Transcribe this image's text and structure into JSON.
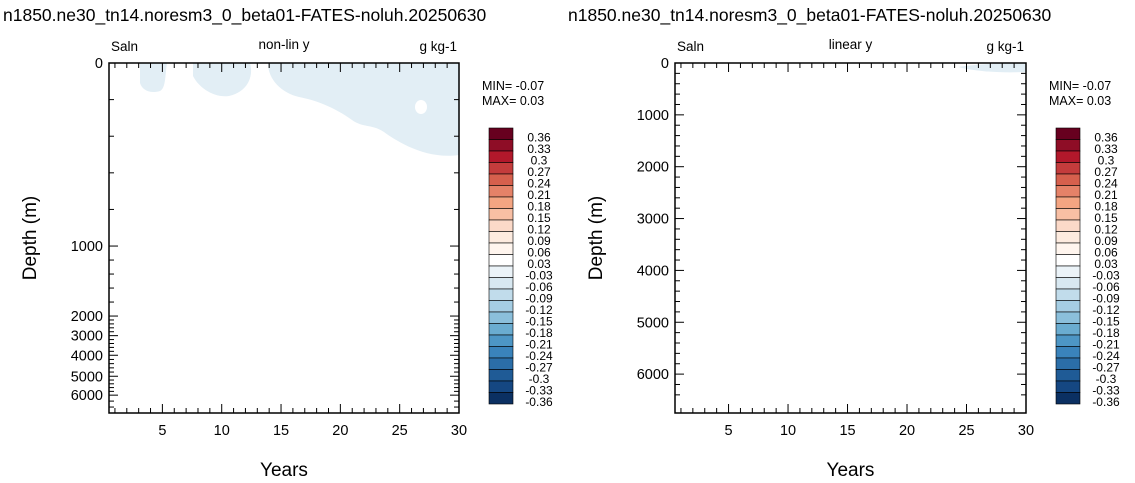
{
  "chart_data": [
    {
      "type": "heatmap",
      "title": "n1850.ne30_tn14.noresm3_0_beta01-FATES-noluh.20250630",
      "left_label": "Saln",
      "center_label": "non-lin y",
      "right_label": "g kg-1",
      "xlabel": "Years",
      "ylabel": "Depth (m)",
      "xlim": [
        0.5,
        30
      ],
      "ylim": [
        6600,
        0
      ],
      "y_scale": "non-linear (compressed below 1000 m)",
      "xticks": [
        5,
        10,
        15,
        20,
        25,
        30
      ],
      "yticks": [
        0,
        1000,
        2000,
        3000,
        4000,
        5000,
        6000
      ],
      "ytick_labels": [
        "0",
        "1000",
        "2000",
        "3000",
        "4000",
        "5000",
        "6000"
      ],
      "min_text": "MIN= -0.07",
      "max_text": "MAX=  0.03",
      "note": "field is near zero everywhere; faint negative patches (-0.03 to 0) in upper ~600 m"
    },
    {
      "type": "heatmap",
      "title": "n1850.ne30_tn14.noresm3_0_beta01-FATES-noluh.20250630",
      "left_label": "Saln",
      "center_label": "linear y",
      "right_label": "g kg-1",
      "xlabel": "Years",
      "ylabel": "Depth (m)",
      "xlim": [
        0.5,
        30
      ],
      "ylim": [
        6750,
        0
      ],
      "y_scale": "linear",
      "xticks": [
        5,
        10,
        15,
        20,
        25,
        30
      ],
      "yticks": [
        0,
        1000,
        2000,
        3000,
        4000,
        5000,
        6000
      ],
      "ytick_labels": [
        "0",
        "1000",
        "2000",
        "3000",
        "4000",
        "5000",
        "6000"
      ],
      "min_text": "MIN= -0.07",
      "max_text": "MAX=  0.03",
      "note": "faint negative patch (-0.03 to 0) only near surface, years 24-30"
    }
  ],
  "colorbar": {
    "labels": [
      "0.36",
      "0.33",
      "0.3",
      "0.27",
      "0.24",
      "0.21",
      "0.18",
      "0.15",
      "0.12",
      "0.09",
      "0.06",
      "0.03",
      "-0.03",
      "-0.06",
      "-0.09",
      "-0.12",
      "-0.15",
      "-0.18",
      "-0.21",
      "-0.24",
      "-0.27",
      "-0.3",
      "-0.33",
      "-0.36"
    ],
    "colors": [
      "#67001f",
      "#8e0d26",
      "#b2182b",
      "#c43c3c",
      "#d6604d",
      "#e58268",
      "#f4a582",
      "#f8bfa4",
      "#fbd9c8",
      "#fdebdf",
      "#fff5ee",
      "#ffffff",
      "#ebf3f8",
      "#d8e8f1",
      "#c1dceb",
      "#a5cde3",
      "#8bbfdb",
      "#6aacd0",
      "#4d96c5",
      "#3a83bb",
      "#2b6ea8",
      "#1f5b96",
      "#154782",
      "#0b3062"
    ]
  },
  "colors": {
    "patch": "#e2eef5"
  }
}
